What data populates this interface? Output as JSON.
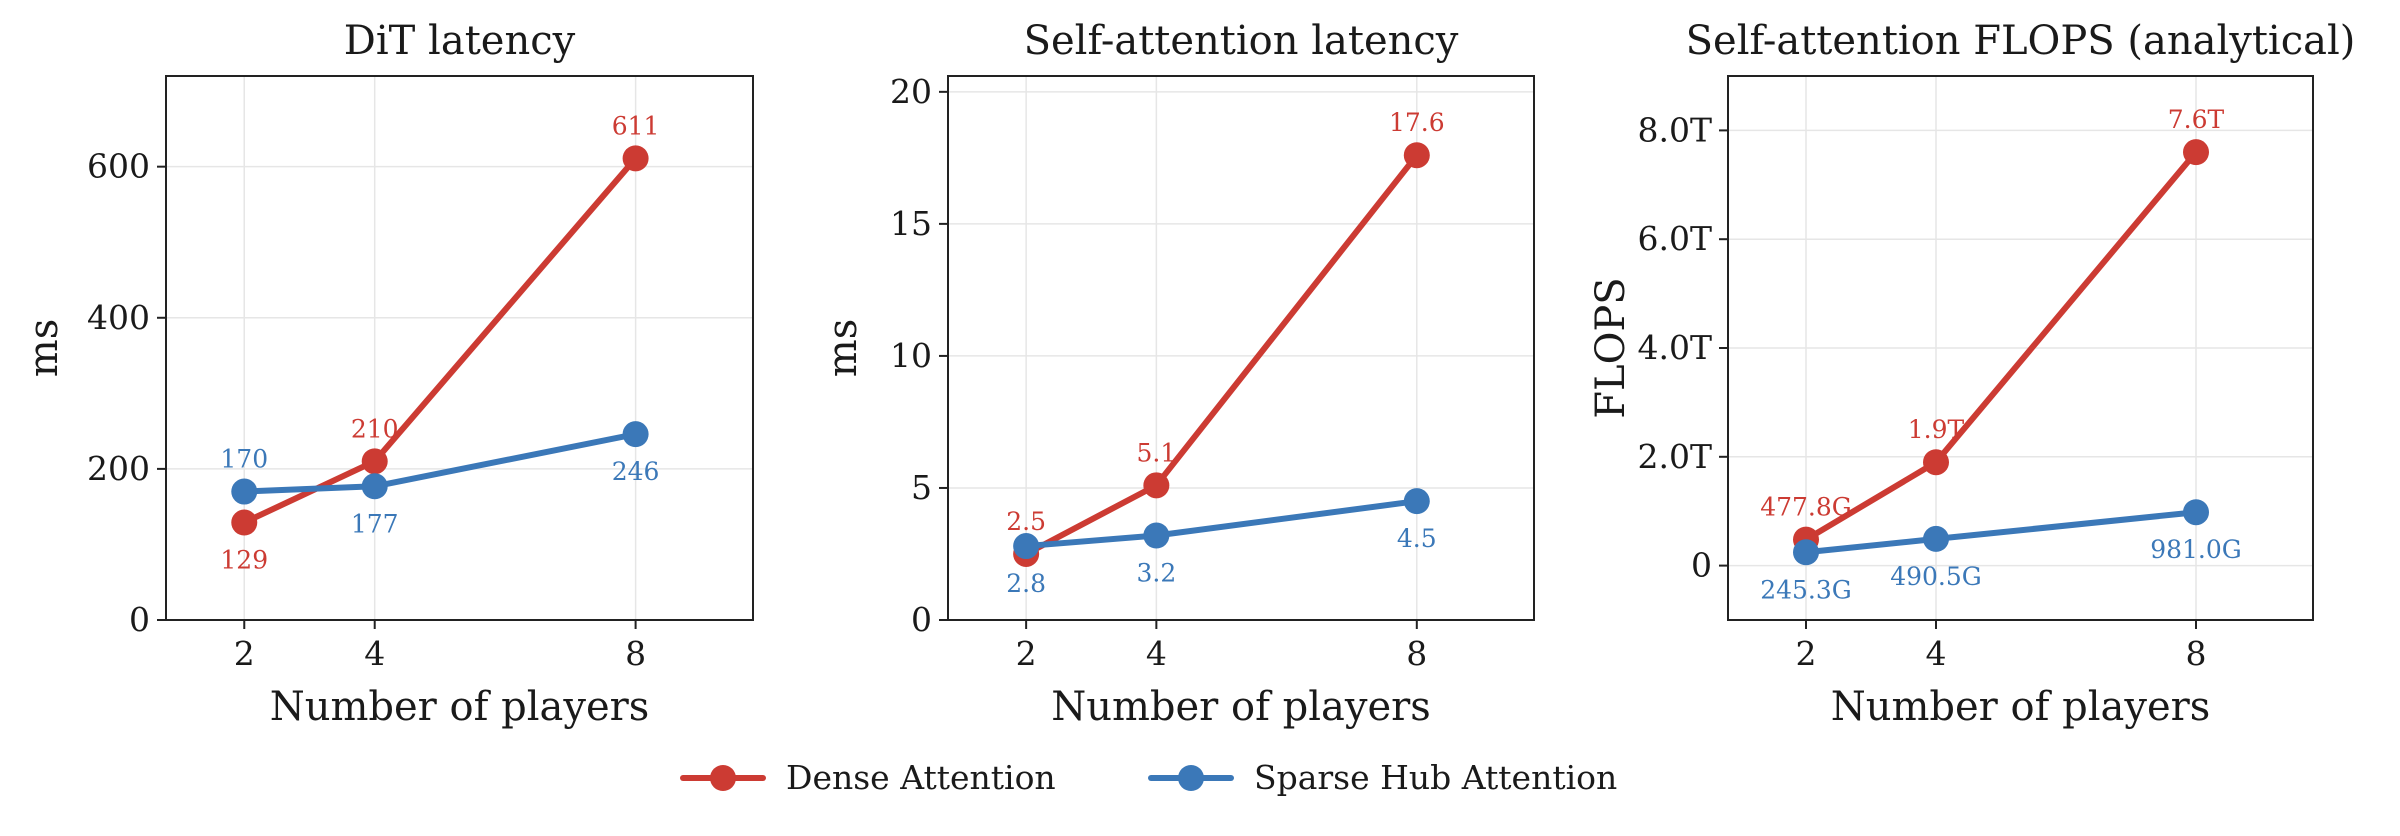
{
  "colors": {
    "dense": "#cc3b33",
    "sparse": "#3b78b8"
  },
  "legend": {
    "placement": "bottom-center",
    "items": [
      {
        "label": "Dense Attention",
        "color": "#cc3b33"
      },
      {
        "label": "Sparse Hub Attention",
        "color": "#3b78b8"
      }
    ]
  },
  "chart_data": [
    {
      "type": "line",
      "title": "DiT latency",
      "xlabel": "Number of players",
      "ylabel": "ms",
      "x": [
        2,
        4,
        8
      ],
      "xticks": [
        2,
        4,
        8
      ],
      "xlim": [
        0.8,
        9.8
      ],
      "ylim": [
        0,
        720
      ],
      "yticks": [
        0,
        200,
        400,
        600
      ],
      "yticklabels": [
        "0",
        "200",
        "400",
        "600"
      ],
      "grid": true,
      "series": [
        {
          "name": "Dense Attention",
          "color": "#cc3b33",
          "values": [
            129,
            210,
            611
          ],
          "labels": [
            "129",
            "210",
            "611"
          ],
          "label_pos": [
            "below",
            "above",
            "above"
          ]
        },
        {
          "name": "Sparse Hub Attention",
          "color": "#3b78b8",
          "values": [
            170,
            177,
            246
          ],
          "labels": [
            "170",
            "177",
            "246"
          ],
          "label_pos": [
            "above",
            "below",
            "below"
          ]
        }
      ]
    },
    {
      "type": "line",
      "title": "Self-attention latency",
      "xlabel": "Number of players",
      "ylabel": "ms",
      "x": [
        2,
        4,
        8
      ],
      "xticks": [
        2,
        4,
        8
      ],
      "xlim": [
        0.8,
        9.8
      ],
      "ylim": [
        0,
        20.6
      ],
      "yticks": [
        0,
        5,
        10,
        15,
        20
      ],
      "yticklabels": [
        "0",
        "5",
        "10",
        "15",
        "20"
      ],
      "grid": true,
      "series": [
        {
          "name": "Dense Attention",
          "color": "#cc3b33",
          "values": [
            2.5,
            5.1,
            17.6
          ],
          "labels": [
            "2.5",
            "5.1",
            "17.6"
          ],
          "label_pos": [
            "above",
            "above",
            "above"
          ]
        },
        {
          "name": "Sparse Hub Attention",
          "color": "#3b78b8",
          "values": [
            2.8,
            3.2,
            4.5
          ],
          "labels": [
            "2.8",
            "3.2",
            "4.5"
          ],
          "label_pos": [
            "below",
            "below",
            "below"
          ]
        }
      ]
    },
    {
      "type": "line",
      "title": "Self-attention FLOPS (analytical)",
      "xlabel": "Number of players",
      "ylabel": "FLOPS",
      "x": [
        2,
        4,
        8
      ],
      "xticks": [
        2,
        4,
        8
      ],
      "xlim": [
        0.8,
        9.8
      ],
      "ylim": [
        -1.0,
        9.0
      ],
      "yticks": [
        0,
        2,
        4,
        6,
        8
      ],
      "yticklabels": [
        "0",
        "2.0T",
        "4.0T",
        "6.0T",
        "8.0T"
      ],
      "y_unit": "T",
      "grid": true,
      "series": [
        {
          "name": "Dense Attention",
          "color": "#cc3b33",
          "values": [
            0.4778,
            1.9,
            7.6
          ],
          "labels": [
            "477.8G",
            "1.9T",
            "7.6T"
          ],
          "label_pos": [
            "above",
            "above",
            "above"
          ]
        },
        {
          "name": "Sparse Hub Attention",
          "color": "#3b78b8",
          "values": [
            0.2453,
            0.4905,
            0.981
          ],
          "labels": [
            "245.3G",
            "490.5G",
            "981.0G"
          ],
          "label_pos": [
            "below",
            "below",
            "below"
          ]
        }
      ]
    }
  ]
}
